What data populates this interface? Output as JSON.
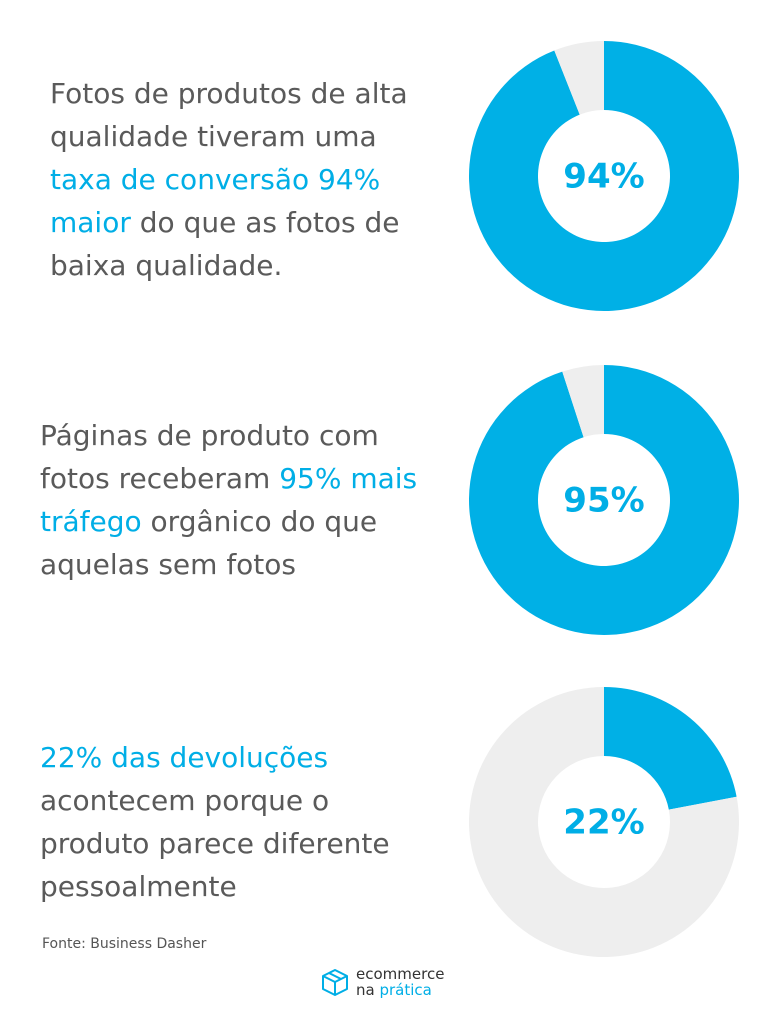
{
  "chart_data": [
    {
      "type": "donut",
      "text_segments": [
        {
          "text": "Fotos de produtos de alta qualidade tiveram uma ",
          "highlight": false
        },
        {
          "text": "taxa de conversão 94% maior",
          "highlight": true
        },
        {
          "text": " do que as fotos de baixa qualidade.",
          "highlight": false
        }
      ],
      "values": [
        94,
        6
      ],
      "value_labels": [
        "94%",
        null
      ],
      "colors": [
        "#00b0e6",
        "#eeeeee"
      ]
    },
    {
      "type": "donut",
      "text_segments": [
        {
          "text": "Páginas de produto com fotos receberam ",
          "highlight": false
        },
        {
          "text": "95% mais tráfego",
          "highlight": true
        },
        {
          "text": " orgânico do que aquelas sem fotos",
          "highlight": false
        }
      ],
      "values": [
        95,
        5
      ],
      "value_labels": [
        "95%",
        null
      ],
      "colors": [
        "#00b0e6",
        "#eeeeee"
      ]
    },
    {
      "type": "donut",
      "text_segments": [
        {
          "text": "22% das devoluções",
          "highlight": true
        },
        {
          "text": " acontecem porque o produto parece diferente pessoalmente",
          "highlight": false
        }
      ],
      "values": [
        22,
        78
      ],
      "value_labels": [
        "22%",
        null
      ],
      "colors": [
        "#00b0e6",
        "#eeeeee"
      ]
    }
  ],
  "source": "Fonte: Business Dasher",
  "logo": {
    "line1": "ecommerce",
    "line2": "na",
    "line2_highlight": "prática"
  }
}
